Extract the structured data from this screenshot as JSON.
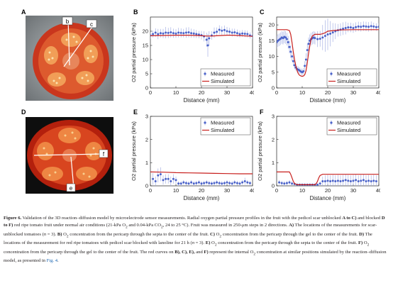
{
  "panels": {
    "A": {
      "letter": "A",
      "labels": [
        "b",
        "c"
      ]
    },
    "B": {
      "letter": "B"
    },
    "C": {
      "letter": "C"
    },
    "D": {
      "letter": "D",
      "labels": [
        "f",
        "e"
      ]
    },
    "E": {
      "letter": "E"
    },
    "F": {
      "letter": "F"
    }
  },
  "colors": {
    "measured": "#4a62c9",
    "simulated": "#c8201e"
  },
  "chart_data": [
    {
      "id": "B",
      "type": "line",
      "xlabel": "Distance (mm)",
      "ylabel": "O2 partial pressure (kPa)",
      "xlim": [
        0,
        40
      ],
      "ylim": [
        0,
        25
      ],
      "xticks": [
        "0",
        "10",
        "20",
        "30",
        "40"
      ],
      "yticks": [
        "0",
        "5",
        "10",
        "15",
        "20"
      ],
      "legend": {
        "placement": "bottom-right",
        "entries": [
          "Measured",
          "Simulated"
        ]
      },
      "series": [
        {
          "name": "Measured",
          "kind": "scatter-error",
          "x": [
            0,
            1,
            2,
            3,
            4,
            5,
            6,
            7,
            8,
            9,
            10,
            11,
            12,
            13,
            14,
            15,
            16,
            17,
            18,
            19,
            20,
            21,
            22,
            22.5,
            23,
            24,
            25,
            26,
            27,
            28,
            29,
            30,
            31,
            32,
            33,
            34,
            35,
            36,
            37,
            38,
            39,
            40
          ],
          "y": [
            18.5,
            19,
            19.5,
            19,
            19.3,
            19.2,
            19.5,
            19.4,
            19.6,
            19.3,
            19.2,
            19.5,
            19.4,
            19.3,
            19.5,
            19.6,
            19.3,
            19.2,
            19,
            18.8,
            18.6,
            18.2,
            17,
            15,
            17.5,
            18.5,
            19.5,
            19.8,
            20.5,
            20.2,
            20.4,
            20,
            19.8,
            19.5,
            19.6,
            19.3,
            19,
            19.2,
            19.1,
            19,
            18.5,
            18.3
          ],
          "err": [
            1.2,
            1.2,
            1.5,
            1.8,
            1.5,
            1.6,
            2,
            1.8,
            1.8,
            1.6,
            1.5,
            1.7,
            1.6,
            1.5,
            1.8,
            1.8,
            1.6,
            1.5,
            1.4,
            1.3,
            1.5,
            1.8,
            2.5,
            4,
            2.5,
            1.5,
            1.8,
            1.5,
            1.6,
            1.5,
            1.6,
            1.5,
            1.4,
            1.4,
            1.3,
            1.3,
            1.2,
            1.2,
            1.2,
            1.2,
            1.1,
            1.1
          ]
        },
        {
          "name": "Simulated",
          "kind": "line",
          "x": [
            0,
            5,
            10,
            15,
            18,
            20,
            22,
            24,
            26,
            28,
            30,
            32,
            34,
            36,
            38,
            40
          ],
          "y": [
            18.4,
            18.5,
            18.6,
            18.6,
            18.5,
            18.4,
            18.3,
            18.3,
            18.4,
            18.5,
            18.6,
            18.6,
            18.5,
            18.4,
            18.3,
            18.2
          ]
        }
      ]
    },
    {
      "id": "C",
      "type": "line",
      "xlabel": "Distance (mm)",
      "ylabel": "O2 partial pressure (kPa)",
      "xlim": [
        0,
        40
      ],
      "ylim": [
        0,
        22.5
      ],
      "xticks": [
        "0",
        "10",
        "20",
        "30",
        "40"
      ],
      "yticks": [
        "0",
        "5",
        "10",
        "15",
        "20"
      ],
      "legend": {
        "placement": "bottom-right",
        "entries": [
          "Measured",
          "Simulated"
        ]
      },
      "series": [
        {
          "name": "Measured",
          "kind": "scatter-error",
          "x": [
            0,
            0.5,
            1,
            1.5,
            2,
            2.5,
            3,
            3.5,
            4,
            4.5,
            5,
            5.5,
            6,
            6.5,
            7,
            7.5,
            8,
            8.5,
            9,
            9.5,
            10,
            10.5,
            11,
            11.5,
            12,
            12.5,
            13,
            13.5,
            14,
            14.5,
            15,
            16,
            17,
            18,
            19,
            20,
            21,
            22,
            23,
            24,
            25,
            26,
            27,
            28,
            29,
            30,
            31,
            32,
            33,
            34,
            35,
            36,
            37,
            38,
            39,
            40
          ],
          "y": [
            14.5,
            15,
            15.3,
            15.6,
            16,
            15.8,
            16.2,
            16,
            15.5,
            14.5,
            13,
            11.5,
            10,
            8.5,
            7.2,
            6.5,
            6,
            5.8,
            5.5,
            5.2,
            5,
            5.3,
            7,
            9,
            12,
            14,
            15,
            15.5,
            15.8,
            16,
            15.8,
            15.5,
            15.6,
            16,
            16.5,
            17,
            17.2,
            17.6,
            18,
            18.3,
            18.5,
            18.8,
            19,
            19.2,
            19.2,
            19,
            19.3,
            19.5,
            19.4,
            19.6,
            19.5,
            19.4,
            19.6,
            19.5,
            19.3,
            19.4
          ],
          "err": [
            2,
            2,
            2,
            2,
            2,
            2,
            2,
            2,
            2,
            2,
            2,
            2,
            1.5,
            1.5,
            1.2,
            1,
            1,
            1,
            1,
            1,
            1,
            1,
            1.5,
            2,
            2,
            2,
            2,
            2,
            2,
            2,
            2,
            2.5,
            2.5,
            4,
            5,
            5,
            4,
            3,
            2.5,
            2,
            2,
            2,
            2,
            1.5,
            1.5,
            1.5,
            1.5,
            1.5,
            1.5,
            1.5,
            1.5,
            1.5,
            1.5,
            1.2,
            1.2,
            1.2
          ]
        },
        {
          "name": "Simulated",
          "kind": "line",
          "x": [
            0,
            4,
            5,
            5.5,
            6,
            6.5,
            7,
            7.5,
            8,
            8.5,
            9,
            9.5,
            10,
            10.5,
            11,
            11.5,
            12,
            12.5,
            13,
            13.5,
            14,
            15,
            16,
            17,
            18,
            19,
            20,
            22,
            25,
            30,
            35,
            40
          ],
          "y": [
            18.5,
            18.5,
            18.2,
            17,
            14.5,
            11.5,
            9,
            7,
            5.5,
            4.5,
            4,
            3.8,
            3.7,
            3.8,
            4.2,
            5.5,
            8,
            11,
            13.5,
            15.5,
            16.5,
            17,
            17,
            17,
            17.2,
            17.5,
            18,
            18.2,
            18.4,
            18.5,
            18.5,
            18.5
          ]
        }
      ]
    },
    {
      "id": "E",
      "type": "line",
      "xlabel": "Distance (mm)",
      "ylabel": "O2 partial pressure (kPa)",
      "xlim": [
        0,
        40
      ],
      "ylim": [
        0,
        3
      ],
      "xticks": [
        "0",
        "10",
        "20",
        "30",
        "40"
      ],
      "yticks": [
        "0",
        "1",
        "2",
        "3"
      ],
      "legend": {
        "placement": "top-right",
        "entries": [
          "Measured",
          "Simulated"
        ]
      },
      "series": [
        {
          "name": "Measured",
          "kind": "scatter-error",
          "x": [
            1,
            2,
            3,
            4,
            5,
            6,
            7,
            8,
            9,
            10,
            11,
            12,
            13,
            14,
            15,
            16,
            17,
            18,
            19,
            20,
            21,
            22,
            23,
            24,
            25,
            26,
            27,
            28,
            29,
            30,
            31,
            32,
            33,
            34,
            35,
            36,
            37,
            38,
            39
          ],
          "y": [
            0.3,
            0.2,
            0.45,
            0.5,
            0.25,
            0.3,
            0.3,
            0.2,
            0.3,
            0.25,
            0.1,
            0.1,
            0.15,
            0.12,
            0.1,
            0.15,
            0.1,
            0.12,
            0.15,
            0.1,
            0.12,
            0.15,
            0.12,
            0.1,
            0.12,
            0.15,
            0.12,
            0.1,
            0.12,
            0.15,
            0.12,
            0.1,
            0.15,
            0.12,
            0.1,
            0.15,
            0.2,
            0.15,
            0.12
          ],
          "err": [
            0.25,
            0.2,
            0.3,
            0.3,
            0.2,
            0.2,
            0.2,
            0.2,
            0.2,
            0.15,
            0.1,
            0.1,
            0.1,
            0.1,
            0.1,
            0.1,
            0.1,
            0.1,
            0.1,
            0.1,
            0.1,
            0.1,
            0.1,
            0.1,
            0.1,
            0.1,
            0.1,
            0.1,
            0.1,
            0.1,
            0.1,
            0.1,
            0.1,
            0.1,
            0.1,
            0.1,
            0.15,
            0.1,
            0.1
          ]
        },
        {
          "name": "Simulated",
          "kind": "line",
          "x": [
            0,
            5,
            10,
            15,
            20,
            25,
            30,
            35,
            40
          ],
          "y": [
            0.6,
            0.59,
            0.57,
            0.56,
            0.55,
            0.54,
            0.53,
            0.52,
            0.52
          ]
        }
      ]
    },
    {
      "id": "F",
      "type": "line",
      "xlabel": "Distance (mm)",
      "ylabel": "O2 partial pressure (kPa)",
      "xlim": [
        0,
        40
      ],
      "ylim": [
        0,
        3
      ],
      "xticks": [
        "0",
        "10",
        "20",
        "30",
        "40"
      ],
      "yticks": [
        "0",
        "1",
        "2",
        "3"
      ],
      "legend": {
        "placement": "top-right",
        "entries": [
          "Measured",
          "Simulated"
        ]
      },
      "series": [
        {
          "name": "Measured",
          "kind": "scatter-error",
          "x": [
            1,
            2,
            3,
            4,
            5,
            6,
            7,
            8,
            9,
            10,
            11,
            12,
            13,
            14,
            15,
            16,
            17,
            18,
            19,
            20,
            21,
            22,
            23,
            24,
            25,
            26,
            27,
            28,
            29,
            30,
            31,
            32,
            33,
            34,
            35,
            36,
            37,
            38,
            39
          ],
          "y": [
            0.15,
            0.12,
            0.1,
            0.12,
            0.15,
            0.1,
            0.08,
            0.05,
            0.05,
            0.05,
            0.05,
            0.05,
            0.05,
            0.05,
            0.05,
            0.05,
            0.1,
            0.2,
            0.2,
            0.22,
            0.2,
            0.22,
            0.2,
            0.22,
            0.2,
            0.22,
            0.25,
            0.22,
            0.2,
            0.22,
            0.25,
            0.2,
            0.22,
            0.25,
            0.2,
            0.22,
            0.2,
            0.22,
            0.2
          ],
          "err": [
            0.1,
            0.1,
            0.1,
            0.1,
            0.1,
            0.1,
            0.05,
            0.05,
            0.05,
            0.05,
            0.05,
            0.05,
            0.05,
            0.05,
            0.05,
            0.05,
            0.1,
            0.2,
            0.25,
            0.25,
            0.25,
            0.25,
            0.25,
            0.25,
            0.25,
            0.25,
            0.25,
            0.25,
            0.25,
            0.25,
            0.25,
            0.25,
            0.25,
            0.25,
            0.25,
            0.25,
            0.25,
            0.25,
            0.25
          ]
        },
        {
          "name": "Simulated",
          "kind": "line",
          "x": [
            0,
            5,
            5.5,
            6,
            6.5,
            7,
            8,
            12,
            15,
            15.5,
            16,
            16.5,
            17,
            18,
            20,
            25,
            30,
            35,
            40
          ],
          "y": [
            0.6,
            0.6,
            0.5,
            0.35,
            0.2,
            0.1,
            0.05,
            0.05,
            0.05,
            0.1,
            0.2,
            0.35,
            0.45,
            0.5,
            0.5,
            0.5,
            0.5,
            0.5,
            0.5
          ]
        }
      ]
    }
  ],
  "caption": {
    "fig_label": "Figure 6.",
    "s1": " Validation of the 3D reaction–diffusion model by microelectrode sensor measurements. Radial oxygen partial pressure profiles in the fruit with the pedicel scar unblocked ",
    "b1": "A to C)",
    "s2": " and blocked ",
    "b2": "D to F)",
    "s3": " red ripe tomato fruit under normal air conditions (21-kPa O",
    "sub2a": "2",
    "s4": " and 0.04-kPa CO",
    "sub2b": "2",
    "s5": ", 24 to 25 °C). Fruit was measured in 250-μm steps in 2 directions. ",
    "b3": "A)",
    "s6": " The locations of the measurements for scar-unblocked tomatoes (",
    "n1": "n",
    "s7": " = 3). ",
    "b4": "B)",
    "s8": " O",
    "sub2c": "2",
    "s9": " concentration from the pericarp through the septa to the center of the fruit. ",
    "b5": "C)",
    "s10": " O",
    "sub2d": "2",
    "s11": " concentration from the pericarp through the gel to the center of the fruit. ",
    "b6": "D)",
    "s12": " The locations of the measurement for red ripe tomatoes with pedicel scar blocked with lanoline for 21 h (",
    "n2": "n",
    "s13": " = 3). ",
    "b7": "E)",
    "s14": " O",
    "sub2e": "2",
    "s15": " concentration from the pericarp through the septa to the center of the fruit. ",
    "b8": "F)",
    "s16": " O",
    "sub2f": "2",
    "s17": " concentration from the pericarp through the gel to the center of the fruit. The red curves on ",
    "b9": "B), C), E),",
    "s18": " and ",
    "b10": "F)",
    "s19": " represent the internal O",
    "sub2g": "2",
    "s20": " concentration at similar positions simulated by the reaction–diffusion model, as presented in ",
    "ref": "Fig. 4",
    "s21": "."
  }
}
